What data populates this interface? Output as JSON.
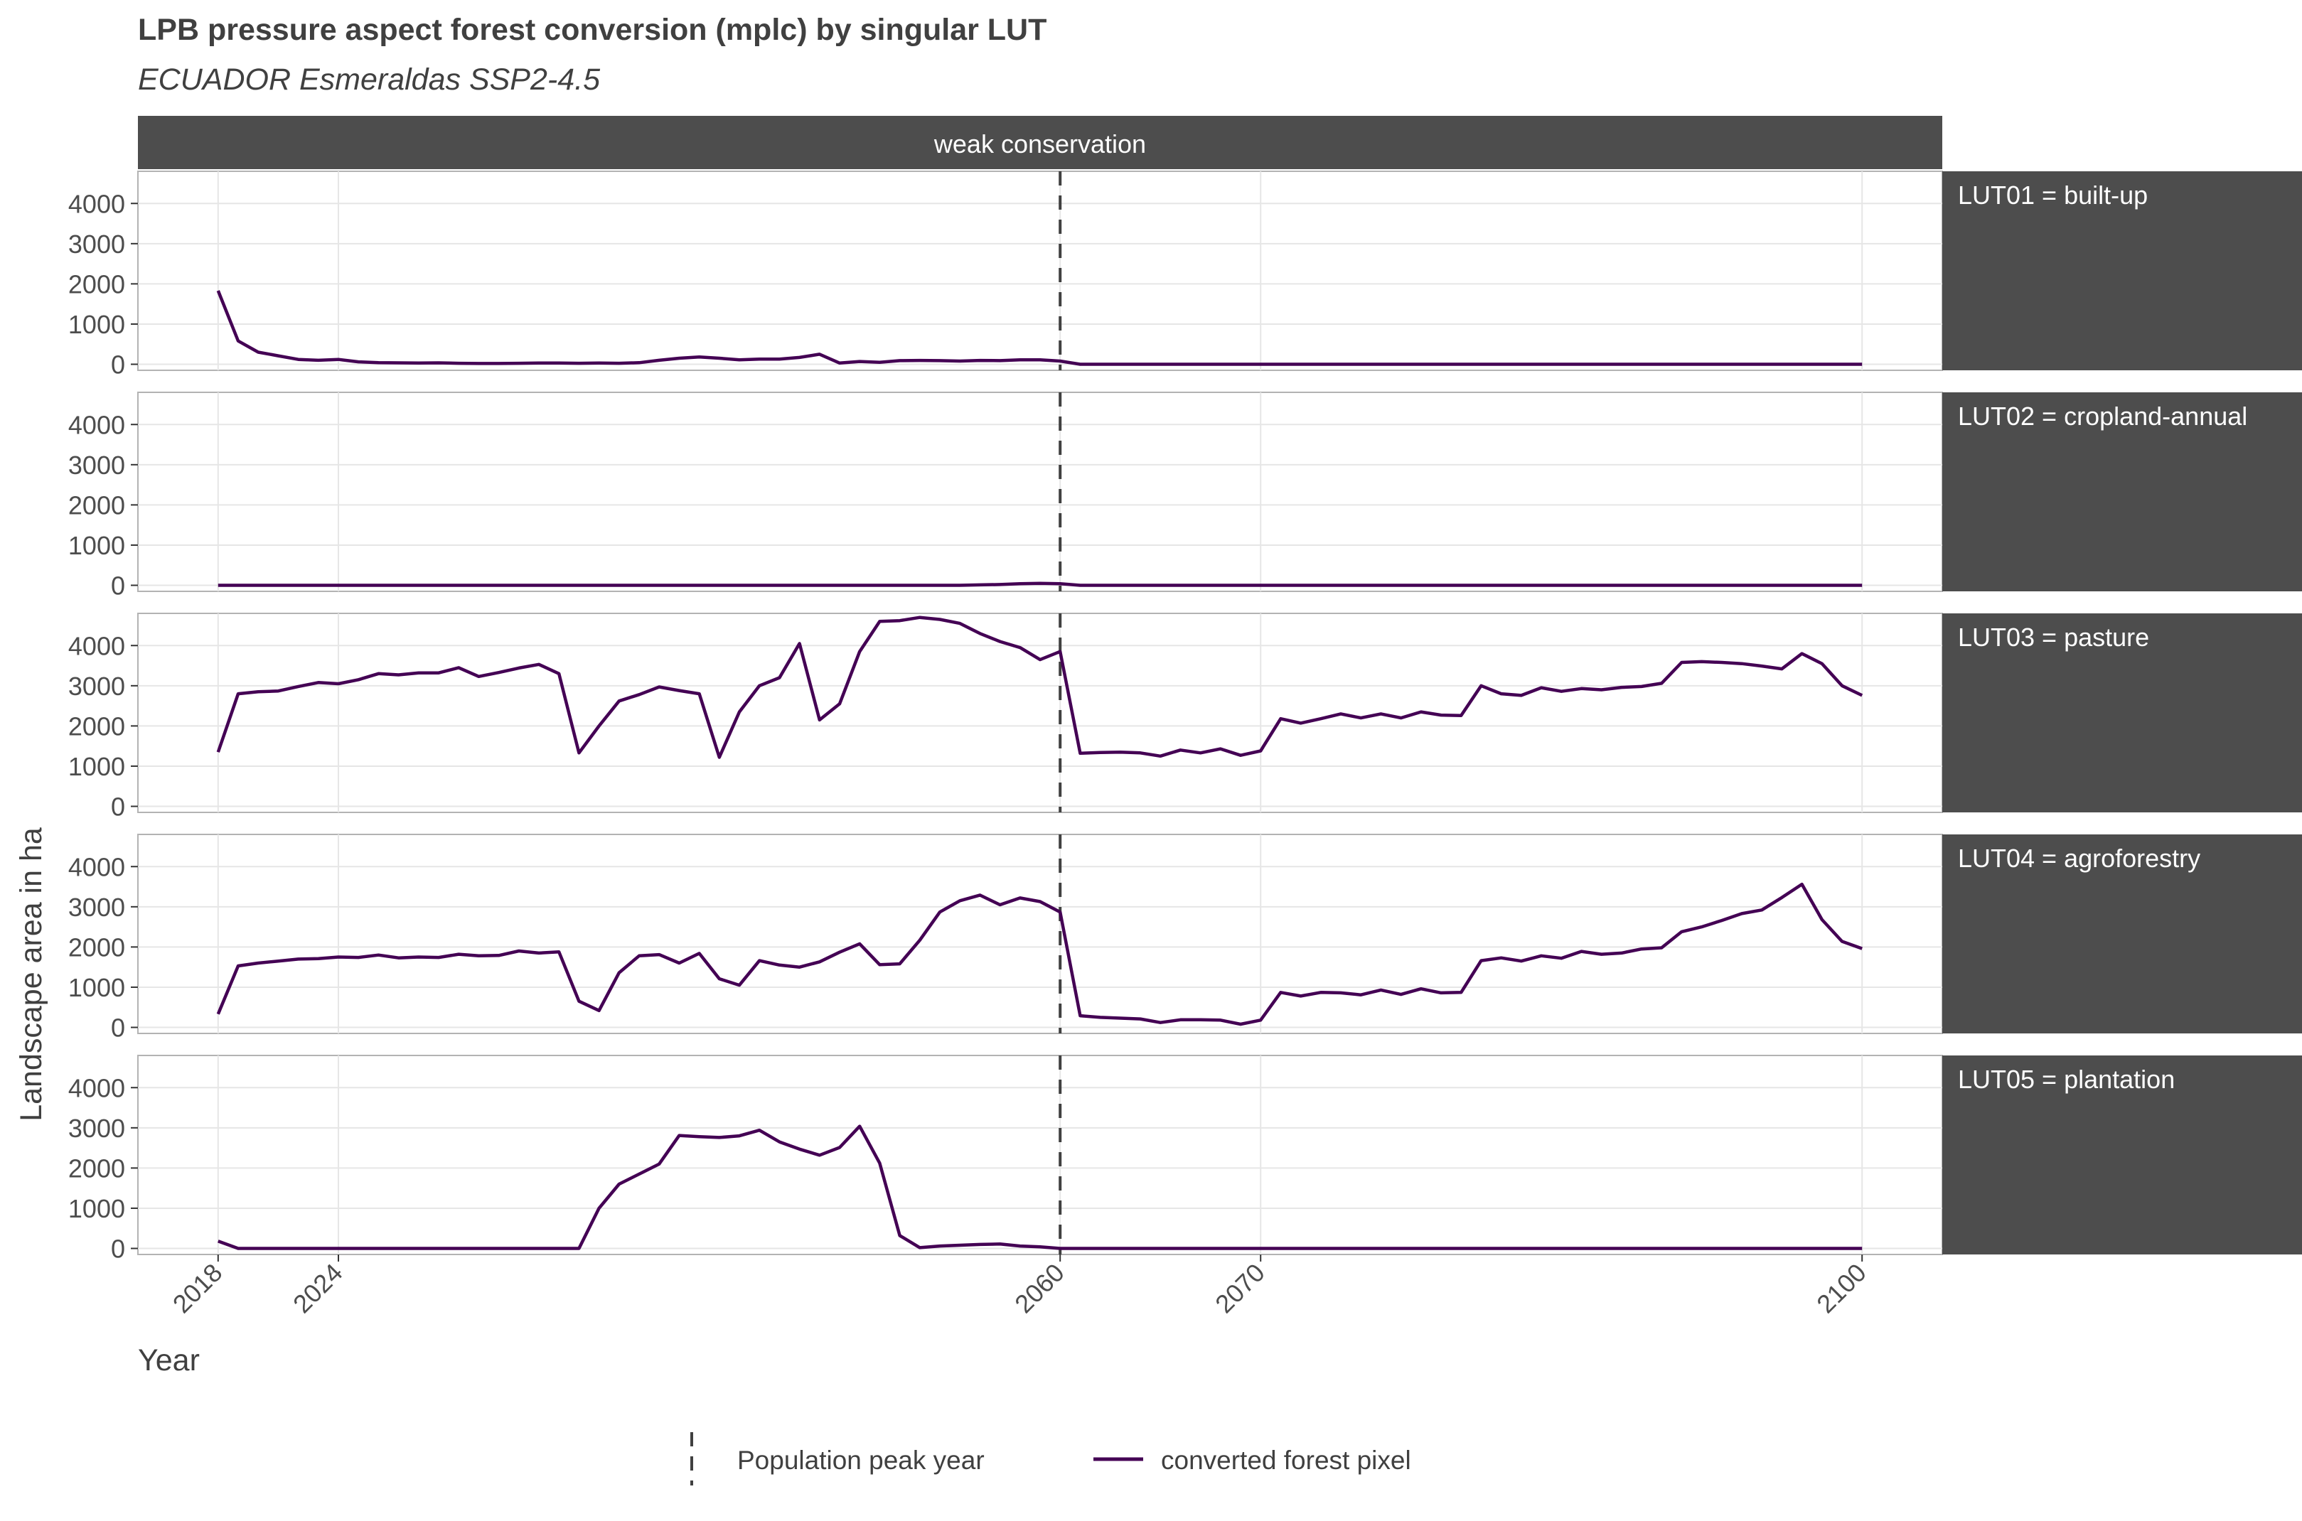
{
  "chart_data": {
    "type": "line",
    "title": "LPB pressure aspect forest conversion (mplc) by singular LUT",
    "subtitle": "ECUADOR Esmeraldas SSP2-4.5",
    "column_strip": "weak conservation",
    "xlabel": "Year",
    "ylabel": "Landscape area in ha",
    "xlim": [
      2014,
      2104
    ],
    "ylim": [
      -150,
      4800
    ],
    "x_ticks": [
      2018,
      2024,
      2060,
      2070,
      2100
    ],
    "y_ticks": [
      0,
      1000,
      2000,
      3000,
      4000
    ],
    "grid": true,
    "population_peak_year": 2060,
    "legend": {
      "position": "bottom",
      "items": [
        "Population peak year",
        "converted forest pixel"
      ]
    },
    "colors": {
      "series": "#440154",
      "strip": "#4d4d4d",
      "peak_line": "#404040",
      "grid": "#e6e6e6"
    },
    "x": [
      2018,
      2019,
      2020,
      2021,
      2022,
      2023,
      2024,
      2025,
      2026,
      2027,
      2028,
      2029,
      2030,
      2031,
      2032,
      2033,
      2034,
      2035,
      2036,
      2037,
      2038,
      2039,
      2040,
      2041,
      2042,
      2043,
      2044,
      2045,
      2046,
      2047,
      2048,
      2049,
      2050,
      2051,
      2052,
      2053,
      2054,
      2055,
      2056,
      2057,
      2058,
      2059,
      2060,
      2061,
      2062,
      2063,
      2064,
      2065,
      2066,
      2067,
      2068,
      2069,
      2070,
      2071,
      2072,
      2073,
      2074,
      2075,
      2076,
      2077,
      2078,
      2079,
      2080,
      2081,
      2082,
      2083,
      2084,
      2085,
      2086,
      2087,
      2088,
      2089,
      2090,
      2091,
      2092,
      2093,
      2094,
      2095,
      2096,
      2097,
      2098,
      2099,
      2100
    ],
    "panels": [
      {
        "strip": "LUT01 = built-up",
        "values": [
          1830,
          580,
          300,
          210,
          120,
          100,
          120,
          60,
          40,
          35,
          30,
          35,
          25,
          20,
          20,
          25,
          30,
          30,
          25,
          30,
          25,
          40,
          100,
          150,
          180,
          150,
          110,
          130,
          130,
          170,
          250,
          30,
          70,
          50,
          90,
          95,
          90,
          80,
          95,
          90,
          110,
          110,
          80,
          0,
          0,
          0,
          0,
          0,
          0,
          0,
          0,
          0,
          0,
          0,
          0,
          0,
          0,
          0,
          0,
          0,
          0,
          0,
          0,
          0,
          0,
          0,
          0,
          0,
          0,
          0,
          0,
          0,
          0,
          0,
          0,
          0,
          0,
          0,
          0,
          0,
          0,
          0,
          0
        ]
      },
      {
        "strip": "LUT02 = cropland-annual",
        "values": [
          0,
          0,
          0,
          0,
          0,
          0,
          0,
          0,
          0,
          0,
          0,
          0,
          0,
          0,
          0,
          0,
          0,
          0,
          0,
          0,
          0,
          0,
          0,
          0,
          0,
          0,
          0,
          0,
          0,
          0,
          0,
          0,
          0,
          0,
          0,
          0,
          0,
          0,
          10,
          20,
          40,
          50,
          40,
          0,
          0,
          0,
          0,
          0,
          0,
          0,
          0,
          0,
          0,
          0,
          0,
          0,
          0,
          0,
          0,
          0,
          0,
          0,
          0,
          0,
          0,
          0,
          0,
          0,
          0,
          0,
          0,
          0,
          0,
          0,
          0,
          0,
          0,
          0,
          0,
          0,
          0,
          0,
          0
        ]
      },
      {
        "strip": "LUT03 = pasture",
        "values": [
          1350,
          2800,
          2850,
          2870,
          2980,
          3080,
          3050,
          3150,
          3300,
          3270,
          3320,
          3320,
          3450,
          3230,
          3330,
          3440,
          3530,
          3300,
          1330,
          2000,
          2620,
          2780,
          2970,
          2880,
          2800,
          1220,
          2350,
          3000,
          3200,
          4050,
          2150,
          2550,
          3850,
          4600,
          4620,
          4700,
          4650,
          4550,
          4300,
          4100,
          3950,
          3650,
          3850,
          1320,
          1340,
          1350,
          1330,
          1250,
          1400,
          1330,
          1430,
          1270,
          1380,
          2180,
          2070,
          2180,
          2300,
          2200,
          2300,
          2200,
          2350,
          2270,
          2260,
          3000,
          2800,
          2760,
          2950,
          2860,
          2930,
          2900,
          2960,
          2980,
          3060,
          3580,
          3600,
          3580,
          3550,
          3490,
          3420,
          3800,
          3550,
          3000,
          2760
        ]
      },
      {
        "strip": "LUT04 = agroforestry",
        "values": [
          330,
          1530,
          1600,
          1650,
          1700,
          1710,
          1750,
          1740,
          1800,
          1730,
          1750,
          1740,
          1820,
          1780,
          1790,
          1900,
          1850,
          1880,
          650,
          420,
          1360,
          1780,
          1810,
          1600,
          1840,
          1210,
          1050,
          1660,
          1550,
          1500,
          1630,
          1870,
          2080,
          1560,
          1580,
          2170,
          2870,
          3150,
          3290,
          3050,
          3220,
          3130,
          2870,
          290,
          250,
          230,
          210,
          120,
          190,
          190,
          180,
          80,
          180,
          870,
          780,
          870,
          860,
          810,
          930,
          820,
          960,
          860,
          870,
          1660,
          1730,
          1650,
          1780,
          1720,
          1890,
          1820,
          1850,
          1950,
          1980,
          2380,
          2500,
          2660,
          2830,
          2920,
          3230,
          3560,
          2680,
          2140,
          1960
        ]
      },
      {
        "strip": "LUT05 = plantation",
        "values": [
          180,
          0,
          0,
          0,
          0,
          0,
          0,
          0,
          0,
          0,
          0,
          0,
          0,
          0,
          0,
          0,
          0,
          0,
          0,
          1000,
          1600,
          1850,
          2100,
          2810,
          2780,
          2760,
          2800,
          2940,
          2650,
          2470,
          2320,
          2510,
          3040,
          2120,
          320,
          20,
          60,
          80,
          100,
          110,
          60,
          40,
          0,
          0,
          0,
          0,
          0,
          0,
          0,
          0,
          0,
          0,
          0,
          0,
          0,
          0,
          0,
          0,
          0,
          0,
          0,
          0,
          0,
          0,
          0,
          0,
          0,
          0,
          0,
          0,
          0,
          0,
          0,
          0,
          0,
          0,
          0,
          0,
          0,
          0,
          0,
          0,
          0
        ]
      }
    ]
  }
}
